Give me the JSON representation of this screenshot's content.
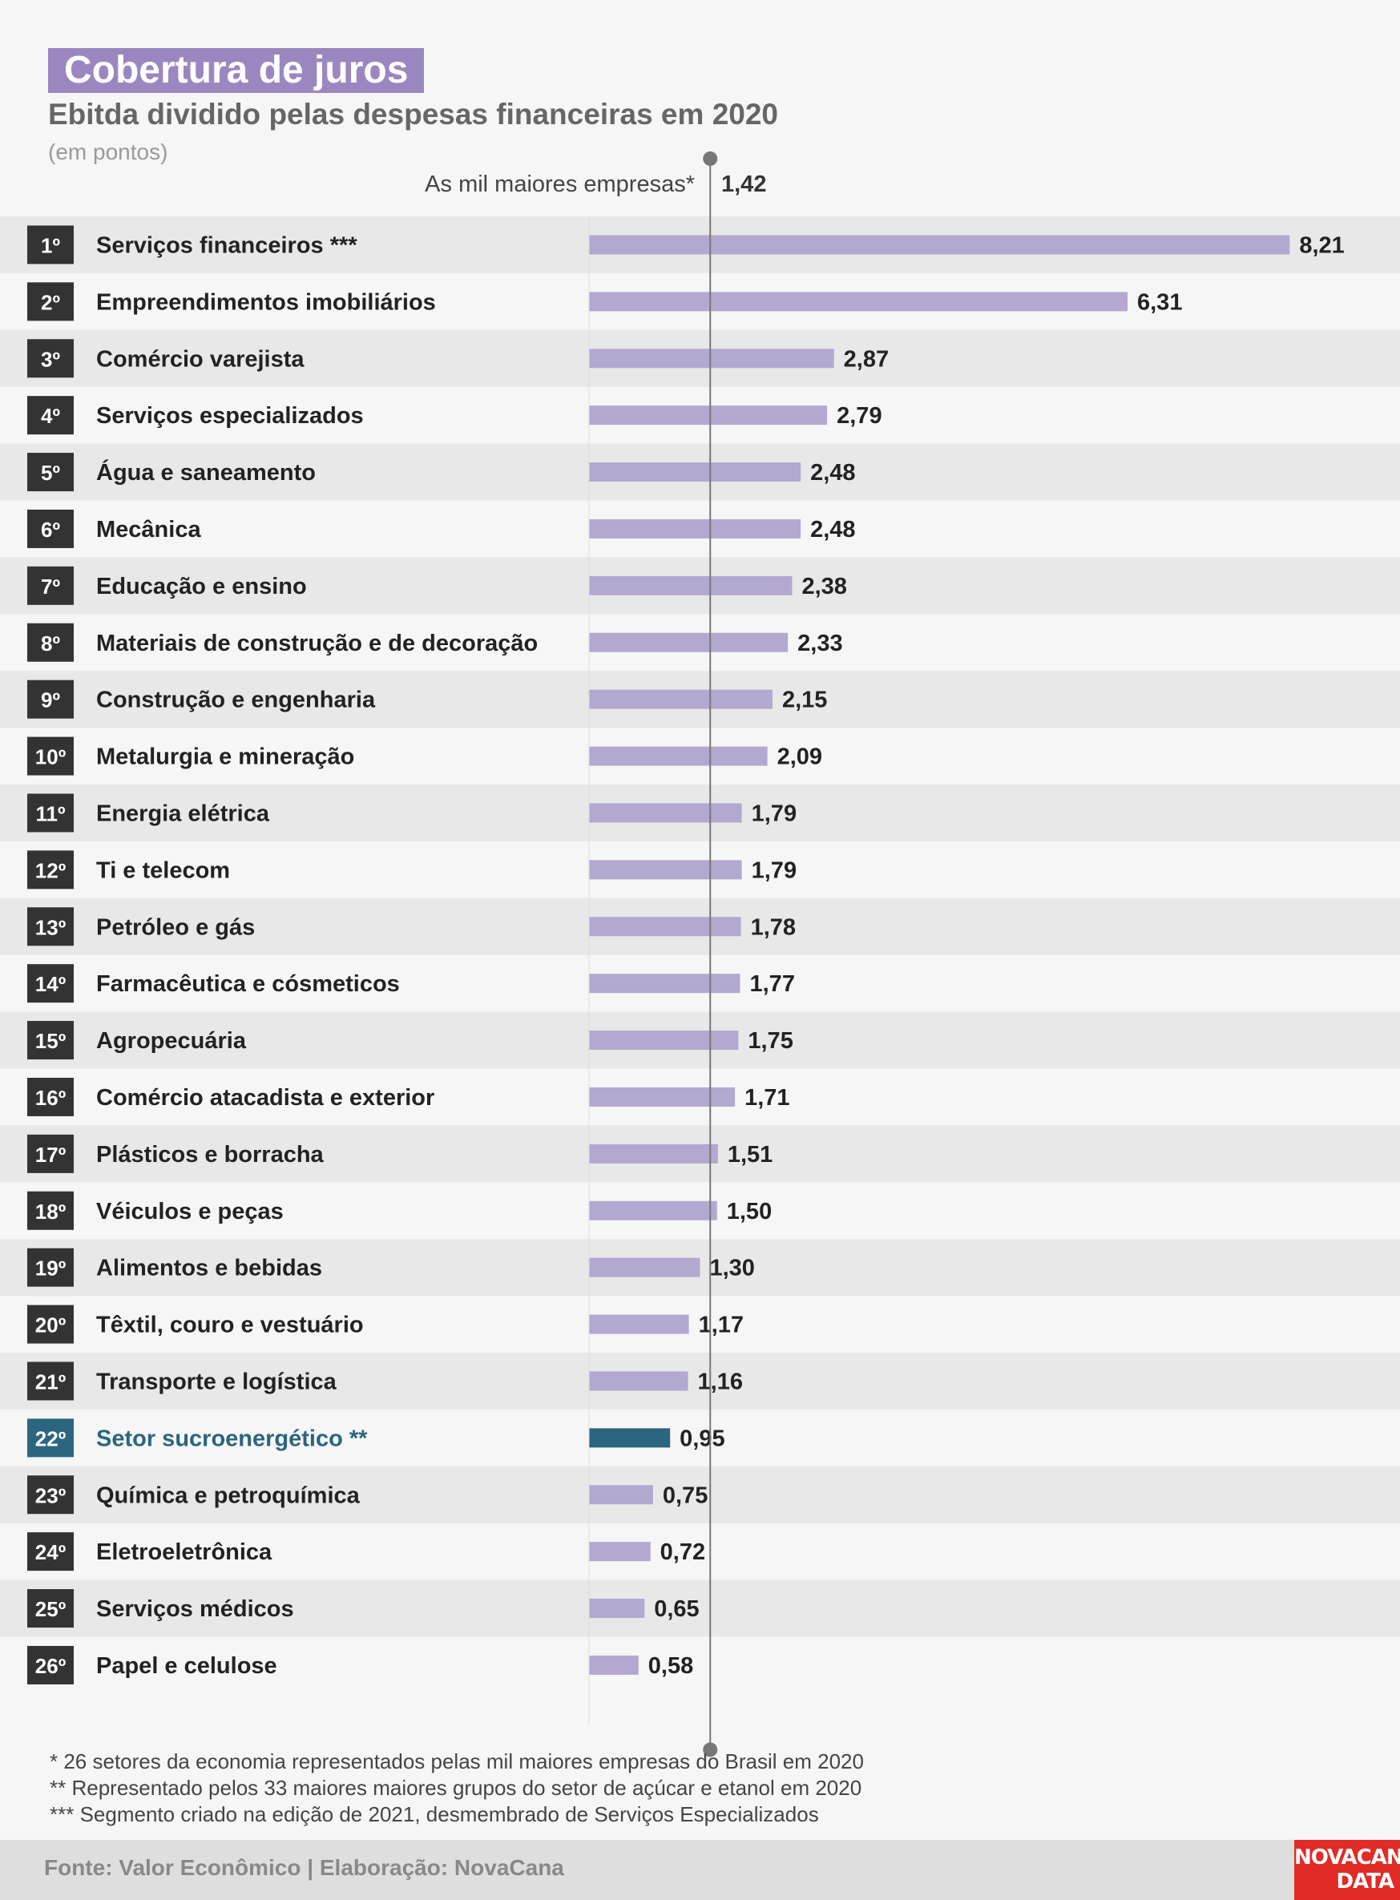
{
  "header": {
    "title": "Cobertura de juros",
    "subtitle": "Ebitda dividido pelas despesas financeiras em 2020",
    "unit": "(em pontos)"
  },
  "reference": {
    "label": "As mil maiores empresas*",
    "value_label": "1,42"
  },
  "colors": {
    "bar": "#b3a8cf",
    "highlight": "#2b6580",
    "rank_box": "#333333",
    "row_alt": "#e8e8e8",
    "title_bg": "#9b87c0"
  },
  "chart_data": {
    "type": "bar",
    "orientation": "horizontal",
    "title": "Cobertura de juros",
    "subtitle": "Ebitda dividido pelas despesas financeiras em 2020",
    "reference_line": {
      "label": "As mil maiores empresas*",
      "value": 1.42
    },
    "highlight_index": 21,
    "categories": [
      "Serviços financeiros ***",
      "Empreendimentos imobiliários",
      "Comércio varejista",
      "Serviços especializados",
      "Água e saneamento",
      "Mecânica",
      "Educação e ensino",
      "Materiais de construção e de decoração",
      "Construção e engenharia",
      "Metalurgia e mineração",
      "Energia elétrica",
      "Ti e telecom",
      "Petróleo e gás",
      "Farmacêutica e cósmeticos",
      "Agropecuária",
      "Comércio atacadista e exterior",
      "Plásticos e borracha",
      "Véiculos e peças",
      "Alimentos e bebidas",
      "Têxtil, couro e vestuário",
      "Transporte e logística",
      "Setor sucroenergético **",
      "Química e petroquímica",
      "Eletroeletrônica",
      "Serviços médicos",
      "Papel e celulose"
    ],
    "ranks": [
      "1º",
      "2º",
      "3º",
      "4º",
      "5º",
      "6º",
      "7º",
      "8º",
      "9º",
      "10º",
      "11º",
      "12º",
      "13º",
      "14º",
      "15º",
      "16º",
      "17º",
      "18º",
      "19º",
      "20º",
      "21º",
      "22º",
      "23º",
      "24º",
      "25º",
      "26º"
    ],
    "values": [
      8.21,
      6.31,
      2.87,
      2.79,
      2.48,
      2.48,
      2.38,
      2.33,
      2.15,
      2.09,
      1.79,
      1.79,
      1.78,
      1.77,
      1.75,
      1.71,
      1.51,
      1.5,
      1.3,
      1.17,
      1.16,
      0.95,
      0.75,
      0.72,
      0.65,
      0.58
    ],
    "value_labels": [
      "8,21",
      "6,31",
      "2,87",
      "2,79",
      "2,48",
      "2,48",
      "2,38",
      "2,33",
      "2,15",
      "2,09",
      "1,79",
      "1,79",
      "1,78",
      "1,77",
      "1,75",
      "1,71",
      "1,51",
      "1,50",
      "1,30",
      "1,17",
      "1,16",
      "0,95",
      "0,75",
      "0,72",
      "0,65",
      "0,58"
    ]
  },
  "footnotes": [
    "* 26 setores da economia representados pelas mil maiores empresas do Brasil em 2020",
    "** Representado pelos 33 maiores maiores grupos do setor de açúcar e etanol em 2020",
    "*** Segmento criado na edição de 2021, desmembrado de Serviços Especializados"
  ],
  "footer": {
    "source": "Fonte: Valor Econômico | Elaboração: NovaCana",
    "logo_line1": "NOVACANA",
    "logo_line2": "DATA"
  }
}
